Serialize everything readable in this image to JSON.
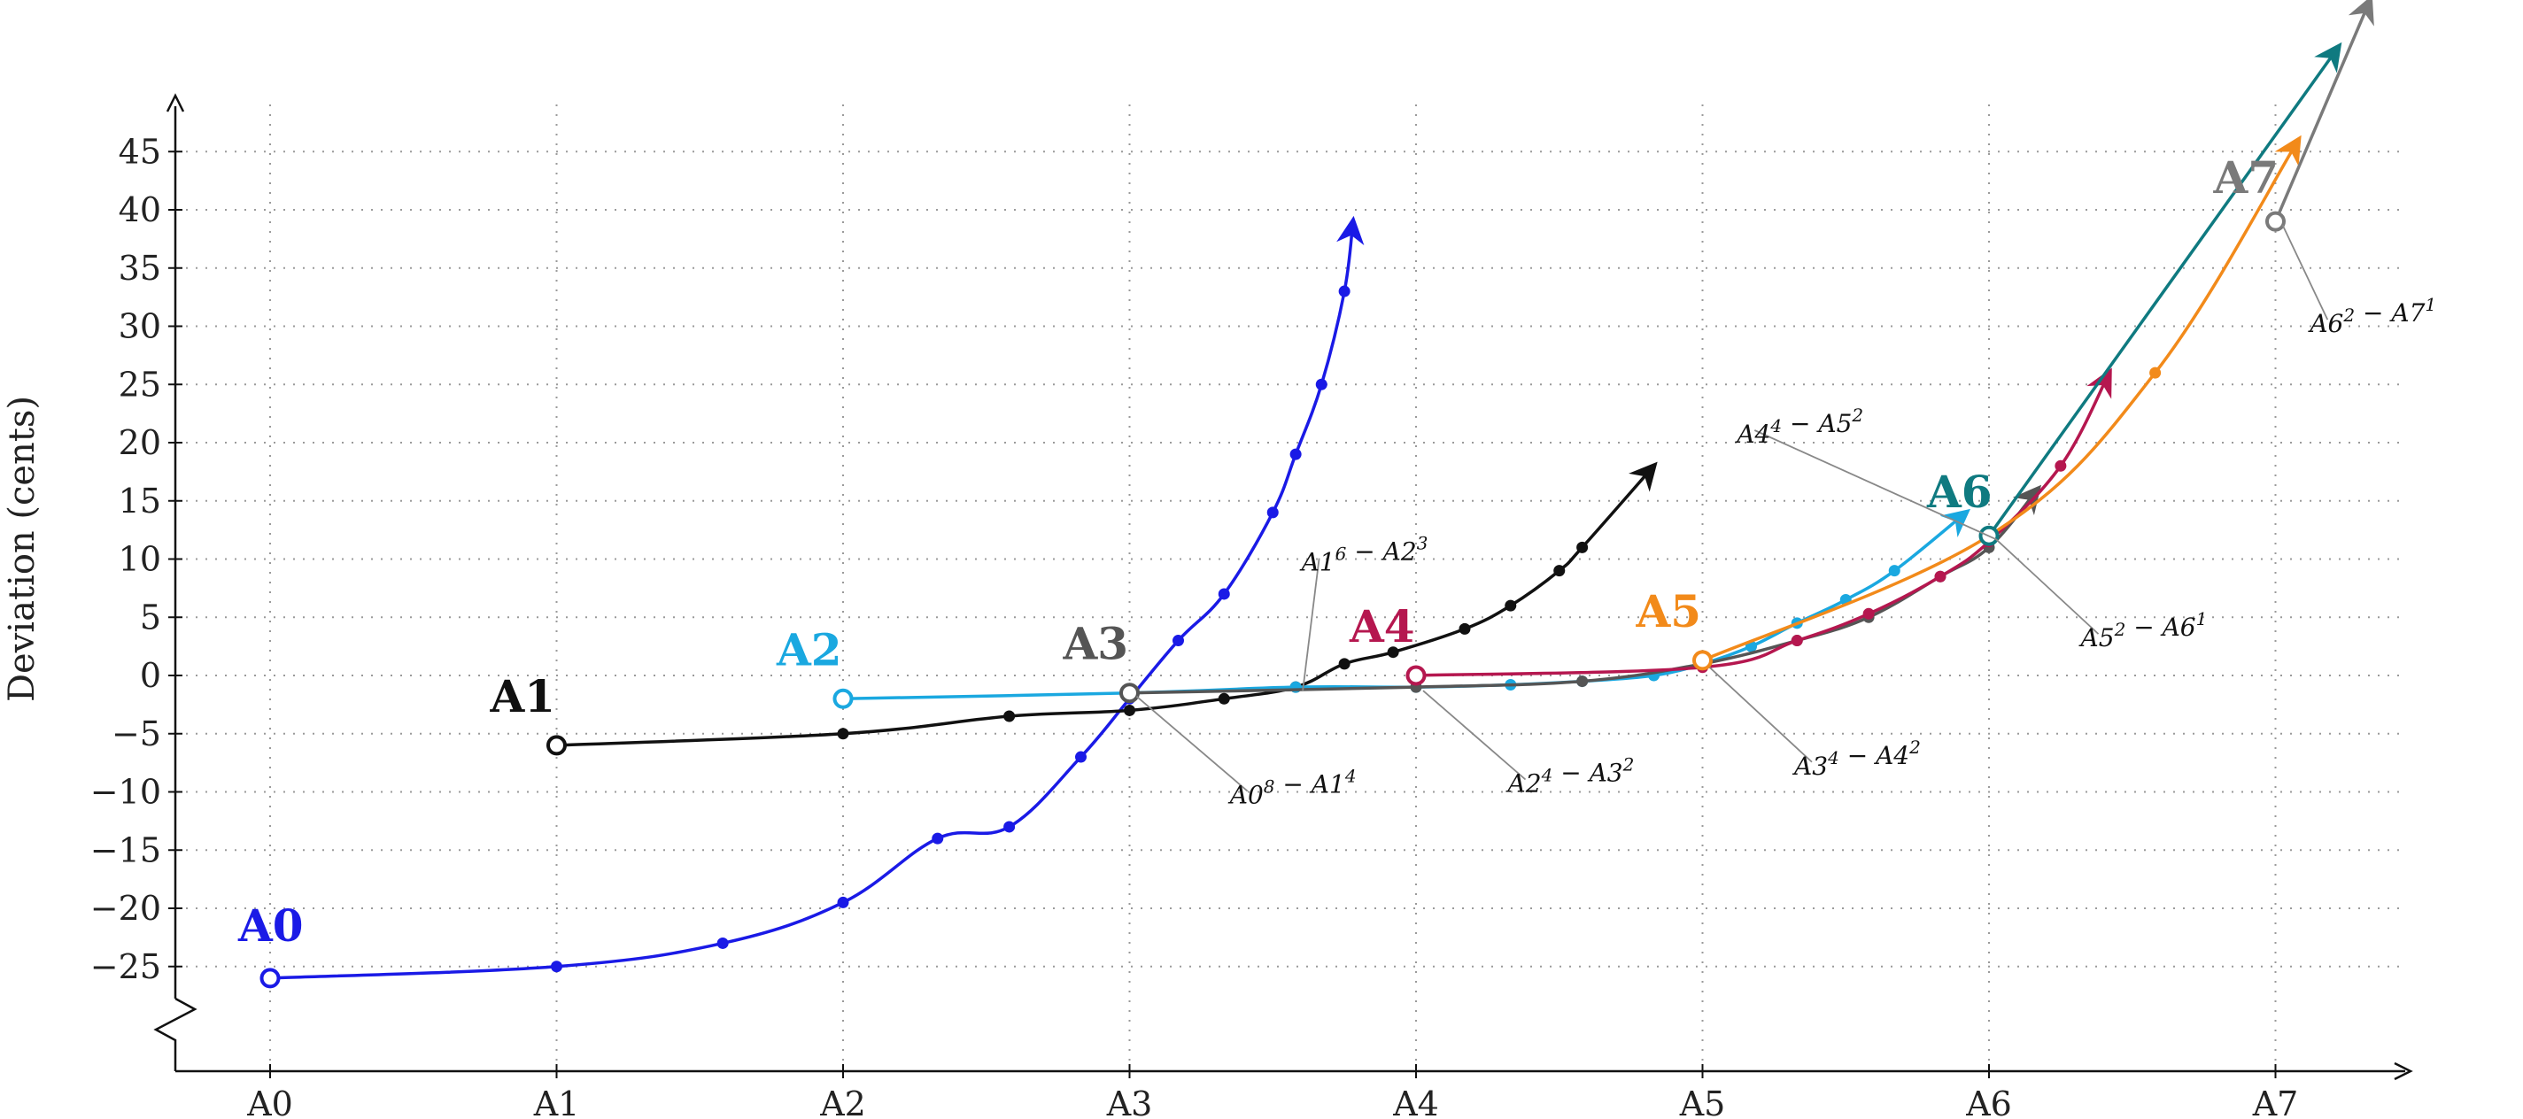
{
  "chart_data": {
    "type": "line",
    "ylabel": "Deviation (cents)",
    "xlabel": "",
    "categories": [
      "A0",
      "A1",
      "A2",
      "A3",
      "A4",
      "A5",
      "A6",
      "A7"
    ],
    "xlim": [
      -0.35,
      7.5
    ],
    "ylim": [
      -33,
      50
    ],
    "y_ticks": [
      -25,
      -20,
      -15,
      -10,
      -5,
      0,
      5,
      10,
      15,
      20,
      25,
      30,
      35,
      40,
      45
    ],
    "y_tick_labels": [
      "−25",
      "−20",
      "−15",
      "−10",
      "−5",
      "0",
      "5",
      "10",
      "15",
      "20",
      "25",
      "30",
      "35",
      "40",
      "45"
    ],
    "axis_break": true,
    "grid": true,
    "series": [
      {
        "name": "A0",
        "color": "#1a1ae6",
        "label_y_offset": 3,
        "points": [
          [
            0,
            -26
          ],
          [
            1,
            -25
          ],
          [
            1.58,
            -23
          ],
          [
            2,
            -19.5
          ],
          [
            2.33,
            -14
          ],
          [
            2.58,
            -13
          ],
          [
            2.83,
            -7
          ],
          [
            3,
            -2
          ],
          [
            3.17,
            3
          ],
          [
            3.33,
            7
          ],
          [
            3.5,
            14
          ],
          [
            3.58,
            19
          ],
          [
            3.67,
            25
          ],
          [
            3.75,
            33
          ]
        ],
        "arrow_to": [
          3.78,
          39
        ]
      },
      {
        "name": "A1",
        "color": "#111111",
        "label_y_offset": 3,
        "points": [
          [
            1,
            -6
          ],
          [
            2,
            -5
          ],
          [
            2.58,
            -3.5
          ],
          [
            3,
            -3
          ],
          [
            3.33,
            -2
          ],
          [
            3.58,
            -1
          ],
          [
            3.75,
            1
          ],
          [
            3.92,
            2
          ],
          [
            4.17,
            4
          ],
          [
            4.33,
            6
          ],
          [
            4.5,
            9
          ],
          [
            4.58,
            11
          ]
        ],
        "arrow_to": [
          4.83,
          18
        ]
      },
      {
        "name": "A2",
        "color": "#1aa8e0",
        "label_y_offset": 3,
        "points": [
          [
            2,
            -2
          ],
          [
            3,
            -1.5
          ],
          [
            3.58,
            -1
          ],
          [
            4,
            -1
          ],
          [
            4.33,
            -0.8
          ],
          [
            4.58,
            -0.5
          ],
          [
            4.83,
            0
          ],
          [
            5,
            1
          ],
          [
            5.17,
            2.5
          ],
          [
            5.33,
            4.5
          ],
          [
            5.5,
            6.5
          ],
          [
            5.67,
            9
          ]
        ],
        "arrow_to": [
          5.92,
          14
        ]
      },
      {
        "name": "A3",
        "color": "#555555",
        "label_y_offset": 3,
        "points": [
          [
            3,
            -1.5
          ],
          [
            4,
            -1
          ],
          [
            4.58,
            -0.5
          ],
          [
            5,
            1
          ],
          [
            5.33,
            3
          ],
          [
            5.58,
            5
          ],
          [
            5.83,
            8.5
          ],
          [
            6,
            11
          ]
        ],
        "arrow_to": [
          6.17,
          16
        ]
      },
      {
        "name": "A4",
        "color": "#b5174f",
        "label_y_offset": 3,
        "points": [
          [
            4,
            0
          ],
          [
            5,
            0.7
          ],
          [
            5.33,
            3
          ],
          [
            5.58,
            5.3
          ],
          [
            5.83,
            8.5
          ],
          [
            6,
            11.5
          ],
          [
            6.25,
            18
          ]
        ],
        "arrow_to": [
          6.42,
          26
        ]
      },
      {
        "name": "A5",
        "color": "#f28a1a",
        "label_y_offset": 3,
        "points": [
          [
            5,
            1.3
          ],
          [
            6,
            12
          ],
          [
            6.58,
            26
          ]
        ],
        "arrow_to": [
          7.08,
          46
        ]
      },
      {
        "name": "A6",
        "color": "#0f7a80",
        "label_y_offset": 3,
        "points": [
          [
            6,
            12
          ]
        ],
        "arrow_to": [
          7.22,
          54
        ]
      },
      {
        "name": "A7",
        "color": "#7a7a7a",
        "label_y_offset": 3,
        "points": [
          [
            7,
            39
          ]
        ],
        "arrow_to": [
          7.33,
          58
        ]
      }
    ],
    "annotations": [
      {
        "note": "A0",
        "p1": "8",
        "mid": " − ",
        "note2": "A1",
        "p2": "4",
        "at": [
          3,
          -1.5
        ],
        "label_at": [
          3.35,
          -11
        ]
      },
      {
        "note": "A1",
        "p1": "6",
        "mid": " − ",
        "note2": "A2",
        "p2": "3",
        "at": [
          3.58,
          -1
        ],
        "label_at": [
          3.6,
          9
        ]
      },
      {
        "note": "A2",
        "p1": "4",
        "mid": " − ",
        "note2": "A3",
        "p2": "2",
        "at": [
          4,
          -1
        ],
        "label_at": [
          4.32,
          -10
        ]
      },
      {
        "note": "A3",
        "p1": "4",
        "mid": " − ",
        "note2": "A4",
        "p2": "2",
        "at": [
          5,
          1
        ],
        "label_at": [
          5.32,
          -8.5
        ]
      },
      {
        "note": "A4",
        "p1": "4",
        "mid": " − ",
        "note2": "A5",
        "p2": "2",
        "at": [
          6,
          12
        ],
        "label_at": [
          5.12,
          20
        ]
      },
      {
        "note": "A5",
        "p1": "2",
        "mid": " − ",
        "note2": "A6",
        "p2": "1",
        "at": [
          6,
          12
        ],
        "label_at": [
          6.32,
          2.5
        ]
      },
      {
        "note": "A6",
        "p1": "2",
        "mid": " − ",
        "note2": "A7",
        "p2": "1",
        "at": [
          7,
          39
        ],
        "label_at": [
          7.12,
          29.5
        ]
      }
    ]
  }
}
